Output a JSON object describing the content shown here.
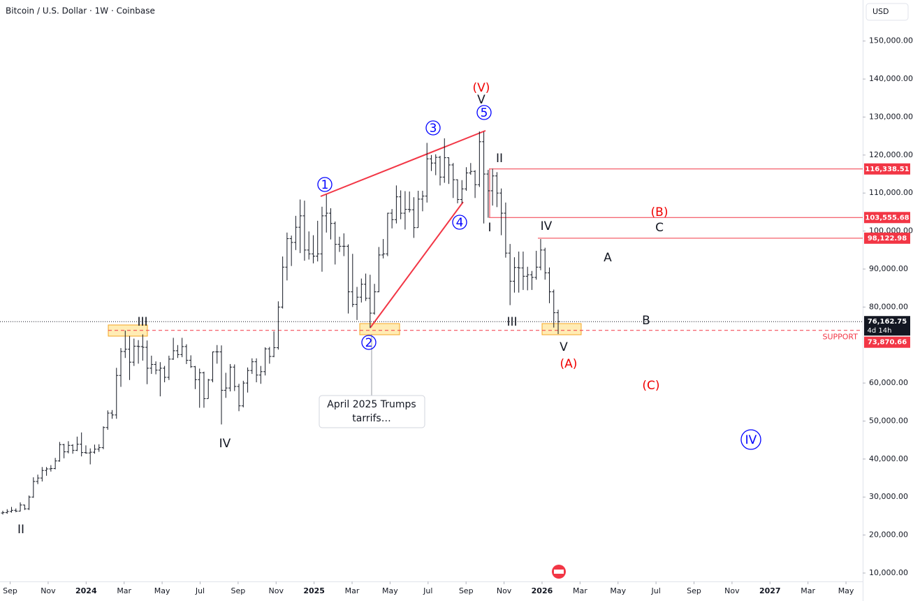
{
  "chart_data": {
    "type": "ohlc",
    "title": "Bitcoin / U.S. Dollar · 1W · Coinbase",
    "currency": "USD",
    "bar_color": "#131722",
    "bars": [
      [
        25800,
        26400,
        25400,
        25900
      ],
      [
        25900,
        26800,
        25600,
        26200
      ],
      [
        26200,
        27400,
        25900,
        26500
      ],
      [
        26500,
        27000,
        26000,
        26300
      ],
      [
        26300,
        28600,
        26200,
        27900
      ],
      [
        27900,
        28000,
        26600,
        26900
      ],
      [
        26900,
        30400,
        26600,
        30000
      ],
      [
        30000,
        35200,
        29800,
        34100
      ],
      [
        34100,
        35900,
        33400,
        35000
      ],
      [
        35000,
        37900,
        34100,
        37000
      ],
      [
        37000,
        37900,
        35600,
        37400
      ],
      [
        37400,
        38400,
        36700,
        37500
      ],
      [
        37500,
        40300,
        37300,
        39500
      ],
      [
        39500,
        44500,
        39300,
        43800
      ],
      [
        43800,
        44000,
        40200,
        41900
      ],
      [
        41900,
        44700,
        41500,
        43600
      ],
      [
        43600,
        43900,
        41400,
        42300
      ],
      [
        42300,
        45900,
        42100,
        43900
      ],
      [
        43900,
        47000,
        40700,
        41700
      ],
      [
        41700,
        43600,
        41400,
        41600
      ],
      [
        41600,
        42800,
        38600,
        41800
      ],
      [
        41800,
        43800,
        41400,
        42600
      ],
      [
        42600,
        43900,
        41900,
        43000
      ],
      [
        43000,
        48600,
        42600,
        48300
      ],
      [
        48300,
        52800,
        47700,
        52100
      ],
      [
        52100,
        52900,
        50600,
        51600
      ],
      [
        51600,
        64000,
        50600,
        62000
      ],
      [
        62000,
        69200,
        59000,
        68300
      ],
      [
        68300,
        73800,
        66600,
        68900
      ],
      [
        68900,
        72400,
        60800,
        65500
      ],
      [
        65500,
        71700,
        64500,
        69700
      ],
      [
        69700,
        71300,
        65100,
        69600
      ],
      [
        69600,
        72800,
        65900,
        69400
      ],
      [
        69400,
        71200,
        59700,
        63900
      ],
      [
        63900,
        67200,
        62400,
        64900
      ],
      [
        64900,
        65700,
        62300,
        63400
      ],
      [
        63400,
        65500,
        56500,
        63900
      ],
      [
        63900,
        64500,
        60200,
        61500
      ],
      [
        61500,
        67200,
        60800,
        66300
      ],
      [
        66300,
        71900,
        66100,
        68500
      ],
      [
        68500,
        70000,
        66600,
        67500
      ],
      [
        67500,
        71900,
        66800,
        69600
      ],
      [
        69600,
        70200,
        65000,
        66000
      ],
      [
        66000,
        67300,
        64000,
        64300
      ],
      [
        64300,
        64500,
        58400,
        60900
      ],
      [
        60900,
        63800,
        53500,
        62700
      ],
      [
        62700,
        63000,
        53500,
        55900
      ],
      [
        55900,
        61100,
        55900,
        60800
      ],
      [
        60800,
        68300,
        60200,
        68200
      ],
      [
        68200,
        70000,
        65100,
        68200
      ],
      [
        68200,
        69900,
        49100,
        58100
      ],
      [
        58100,
        62700,
        56100,
        58700
      ],
      [
        58700,
        65000,
        57800,
        64200
      ],
      [
        64200,
        64900,
        57900,
        59100
      ],
      [
        59100,
        59800,
        52600,
        54000
      ],
      [
        54000,
        60600,
        53600,
        60000
      ],
      [
        60000,
        64100,
        57500,
        63300
      ],
      [
        63300,
        66500,
        62400,
        65600
      ],
      [
        65600,
        66500,
        60200,
        62100
      ],
      [
        62100,
        64500,
        59800,
        63000
      ],
      [
        63000,
        69400,
        62000,
        69000
      ],
      [
        69000,
        69500,
        65100,
        67000
      ],
      [
        67000,
        73600,
        66800,
        69300
      ],
      [
        69300,
        81500,
        68800,
        80000
      ],
      [
        80000,
        93300,
        79600,
        90500
      ],
      [
        90500,
        99600,
        87000,
        98000
      ],
      [
        98000,
        98800,
        90800,
        97000
      ],
      [
        97000,
        104000,
        95000,
        101000
      ],
      [
        101000,
        108300,
        94200,
        104000
      ],
      [
        104000,
        108000,
        92200,
        95000
      ],
      [
        95000,
        99900,
        92500,
        94000
      ],
      [
        94000,
        98900,
        91500,
        93400
      ],
      [
        93400,
        102700,
        92000,
        94000
      ],
      [
        94000,
        106400,
        89300,
        104000
      ],
      [
        104000,
        109600,
        99600,
        104700
      ],
      [
        104700,
        106000,
        97800,
        102000
      ],
      [
        102000,
        102500,
        91200,
        96500
      ],
      [
        96500,
        98500,
        94500,
        96000
      ],
      [
        96000,
        99400,
        93400,
        96000
      ],
      [
        96000,
        96500,
        78300,
        84000
      ],
      [
        84000,
        94000,
        80000,
        80700
      ],
      [
        80700,
        85300,
        76600,
        82600
      ],
      [
        82600,
        87500,
        81200,
        86000
      ],
      [
        86000,
        88800,
        81600,
        82300
      ],
      [
        82300,
        88500,
        74500,
        78400
      ],
      [
        78400,
        86100,
        78000,
        84000
      ],
      [
        84000,
        95800,
        83900,
        93700
      ],
      [
        93700,
        97900,
        92800,
        94000
      ],
      [
        94000,
        104800,
        93400,
        104700
      ],
      [
        104700,
        105800,
        100700,
        103000
      ],
      [
        103000,
        112000,
        102000,
        109000
      ],
      [
        109000,
        110700,
        103100,
        104700
      ],
      [
        104700,
        110500,
        100400,
        105700
      ],
      [
        105700,
        110400,
        104900,
        105600
      ],
      [
        105600,
        108900,
        98200,
        100900
      ],
      [
        100900,
        110600,
        100900,
        108400
      ],
      [
        108400,
        110600,
        105200,
        109200
      ],
      [
        109200,
        123200,
        107500,
        119000
      ],
      [
        119000,
        120000,
        115800,
        117900
      ],
      [
        117900,
        120200,
        114700,
        119400
      ],
      [
        119400,
        119800,
        112000,
        114200
      ],
      [
        114200,
        124400,
        112700,
        119300
      ],
      [
        119300,
        119400,
        112400,
        117400
      ],
      [
        117400,
        117900,
        108700,
        113500
      ],
      [
        113500,
        113600,
        107300,
        108300
      ],
      [
        108300,
        113400,
        107300,
        111100
      ],
      [
        111100,
        116800,
        110600,
        115300
      ],
      [
        115300,
        117900,
        114800,
        115700
      ],
      [
        115700,
        116000,
        108700,
        112200
      ],
      [
        112200,
        126200,
        111600,
        123500
      ],
      [
        123500,
        126100,
        102000,
        115000
      ],
      [
        115000,
        116100,
        103500,
        110600
      ],
      [
        110600,
        116400,
        106700,
        114500
      ],
      [
        114500,
        115500,
        106300,
        110000
      ],
      [
        110000,
        111200,
        98900,
        104700
      ],
      [
        104700,
        107500,
        93000,
        94200
      ],
      [
        94200,
        96600,
        80500,
        86800
      ],
      [
        86800,
        93100,
        83800,
        90400
      ],
      [
        90400,
        94600,
        83800,
        90300
      ],
      [
        90300,
        94600,
        84500,
        88100
      ],
      [
        88100,
        90600,
        84400,
        88500
      ],
      [
        88500,
        89500,
        84500,
        87800
      ],
      [
        87800,
        94800,
        87200,
        90500
      ],
      [
        90500,
        97900,
        89700,
        95000
      ],
      [
        95000,
        95600,
        87200,
        89000
      ],
      [
        89000,
        90400,
        81000,
        84000
      ],
      [
        84000,
        84600,
        74600,
        78500
      ],
      [
        78500,
        79300,
        72900,
        76162.75
      ]
    ],
    "ylim": [
      8161,
      160800
    ],
    "yticks": [
      {
        "value": 10000,
        "label": "10,000.00"
      },
      {
        "value": 20000,
        "label": "20,000.00"
      },
      {
        "value": 30000,
        "label": "30,000.00"
      },
      {
        "value": 40000,
        "label": "40,000.00"
      },
      {
        "value": 50000,
        "label": "50,000.00"
      },
      {
        "value": 60000,
        "label": "60,000.00"
      },
      {
        "value": 80000,
        "label": "80,000.00"
      },
      {
        "value": 90000,
        "label": "90,000.00"
      },
      {
        "value": 100000,
        "label": "100,000.00"
      },
      {
        "value": 110000,
        "label": "110,000.00"
      },
      {
        "value": 120000,
        "label": "120,000.00"
      },
      {
        "value": 130000,
        "label": "130,000.00"
      },
      {
        "value": 140000,
        "label": "140,000.00"
      },
      {
        "value": 150000,
        "label": "150,000.00"
      }
    ],
    "xlim": [
      -0.535,
      44.88
    ],
    "xticks": [
      {
        "value": 0,
        "label": "Sep"
      },
      {
        "value": 2,
        "label": "Nov"
      },
      {
        "value": 4,
        "label": "2024"
      },
      {
        "value": 6,
        "label": "Mar"
      },
      {
        "value": 8,
        "label": "May"
      },
      {
        "value": 10,
        "label": "Jul"
      },
      {
        "value": 12,
        "label": "Sep"
      },
      {
        "value": 14,
        "label": "Nov"
      },
      {
        "value": 16,
        "label": "2025"
      },
      {
        "value": 18,
        "label": "Mar"
      },
      {
        "value": 20,
        "label": "May"
      },
      {
        "value": 22,
        "label": "Jul"
      },
      {
        "value": 24,
        "label": "Sep"
      },
      {
        "value": 26,
        "label": "Nov"
      },
      {
        "value": 28,
        "label": "2026"
      },
      {
        "value": 30,
        "label": "Mar"
      },
      {
        "value": 32,
        "label": "May"
      },
      {
        "value": 34,
        "label": "Jul"
      },
      {
        "value": 36,
        "label": "Sep"
      },
      {
        "value": 38,
        "label": "Nov"
      },
      {
        "value": 40,
        "label": "2027"
      },
      {
        "value": 42,
        "label": "Mar"
      },
      {
        "value": 44,
        "label": "May"
      }
    ],
    "levels": [
      {
        "value": 116338.51,
        "label": "116,338.51"
      },
      {
        "value": 103555.68,
        "label": "103,555.68"
      },
      {
        "value": 98122.98,
        "label": "98,122.98"
      }
    ],
    "level_color": "#f23645",
    "current_price": {
      "value": 76162.75,
      "label": "76,162.75",
      "countdown": "4d 14h"
    },
    "support": {
      "value": 73870.66,
      "label": "73,870.66",
      "text": "SUPPORT"
    },
    "annotations": [
      {
        "text": "II",
        "color": "#131722",
        "circled": false
      },
      {
        "text": "III",
        "color": "#131722",
        "circled": false
      },
      {
        "text": "IV",
        "color": "#131722",
        "circled": false
      },
      {
        "text": "1",
        "color": "#0000ff",
        "circled": true
      },
      {
        "text": "2",
        "color": "#0000ff",
        "circled": true
      },
      {
        "text": "3",
        "color": "#0000ff",
        "circled": true
      },
      {
        "text": "4",
        "color": "#0000ff",
        "circled": true
      },
      {
        "text": "5",
        "color": "#0000ff",
        "circled": true
      },
      {
        "text": "V",
        "color": "#131722",
        "circled": false
      },
      {
        "text": "(V)",
        "color": "#f00000",
        "circled": false
      },
      {
        "text": "II",
        "color": "#131722",
        "circled": false
      },
      {
        "text": "I",
        "color": "#131722",
        "circled": false
      },
      {
        "text": "III",
        "color": "#131722",
        "circled": false
      },
      {
        "text": "IV",
        "color": "#131722",
        "circled": false
      },
      {
        "text": "V",
        "color": "#131722",
        "circled": false
      },
      {
        "text": "(A)",
        "color": "#f00000",
        "circled": false
      },
      {
        "text": "(B)",
        "color": "#f00000",
        "circled": false
      },
      {
        "text": "C",
        "color": "#131722",
        "circled": false
      },
      {
        "text": "A",
        "color": "#131722",
        "circled": false
      },
      {
        "text": "B",
        "color": "#131722",
        "circled": false
      },
      {
        "text": "(C)",
        "color": "#f00000",
        "circled": false
      },
      {
        "text": "IV",
        "color": "#0000ff",
        "circled": true
      }
    ],
    "callout": [
      "April 2025 Trumps",
      "tarrifs…"
    ]
  }
}
